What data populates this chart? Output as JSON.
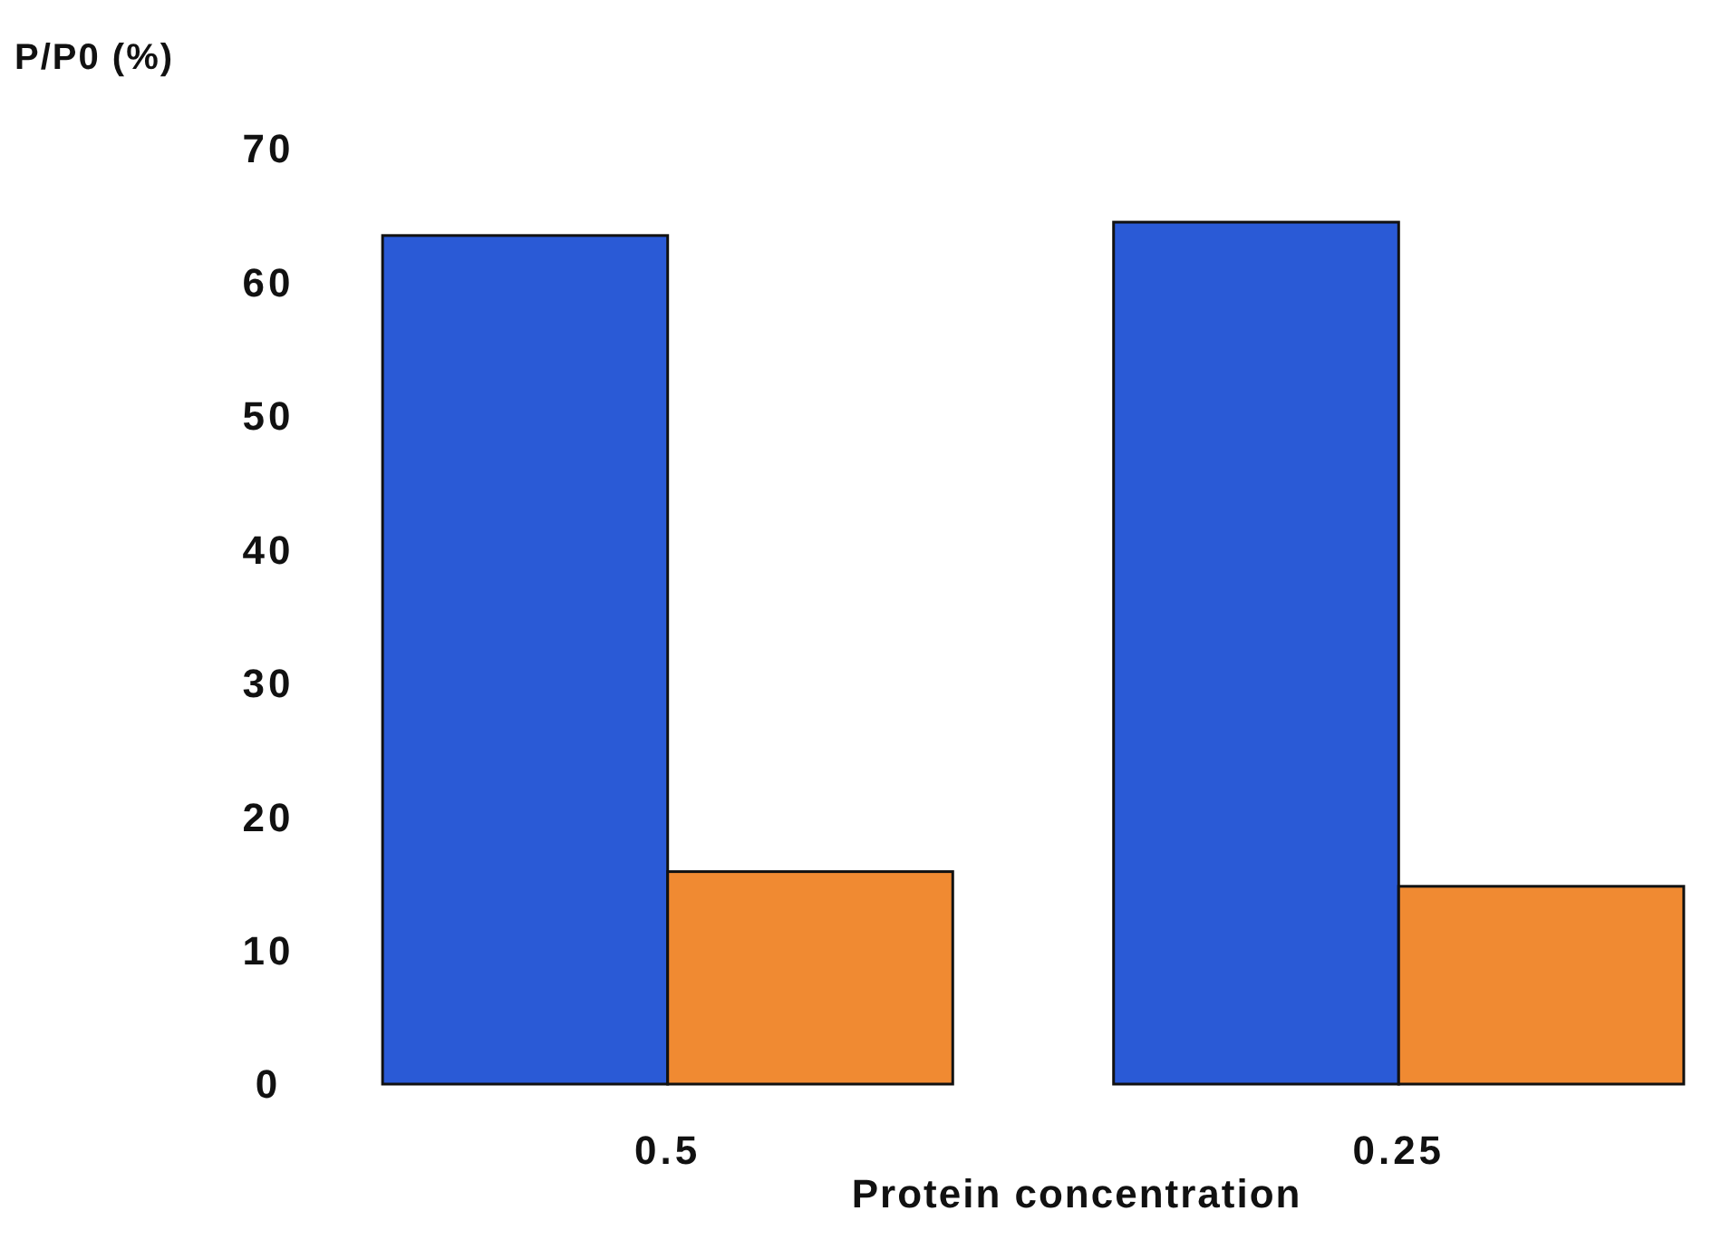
{
  "chart_data": {
    "type": "bar",
    "ylabel": "P/P0 (%)",
    "xlabel": "Protein concentration",
    "categories": [
      "0.5",
      "0.25"
    ],
    "series": [
      {
        "color": "#2a5ad6",
        "values": [
          63.5,
          64.5
        ]
      },
      {
        "color": "#f08a32",
        "values": [
          15.9,
          14.8
        ]
      }
    ],
    "ylim": [
      0,
      70
    ],
    "yticks": [
      0,
      10,
      20,
      30,
      40,
      50,
      60,
      70
    ],
    "grid": false
  }
}
